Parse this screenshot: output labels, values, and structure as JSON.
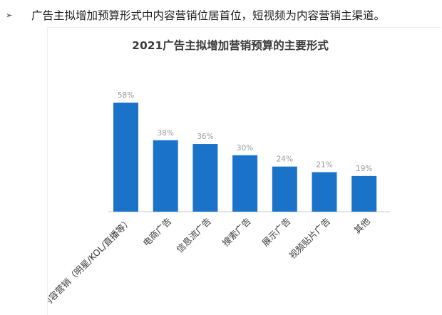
{
  "bullet": {
    "marker": "➢",
    "text": "广告主拟增加预算形式中内容营销位居首位，短视频为内容营销主渠道。"
  },
  "chart_data": {
    "type": "bar",
    "title": "2021广告主拟增加营销预算的主要形式",
    "categories": [
      "内容营销（明星/KOL/直播等）",
      "电商广告",
      "信息流广告",
      "搜索广告",
      "展示广告",
      "视频贴片广告",
      "其他"
    ],
    "values": [
      58,
      38,
      36,
      30,
      24,
      21,
      19
    ],
    "value_labels": [
      "58%",
      "38%",
      "36%",
      "30%",
      "24%",
      "21%",
      "19%"
    ],
    "unit": "%",
    "ylim": [
      0,
      58
    ],
    "bar_color": "#1a73c9",
    "axis_color": "#c8c8c8",
    "grid": false,
    "legend": "none"
  }
}
